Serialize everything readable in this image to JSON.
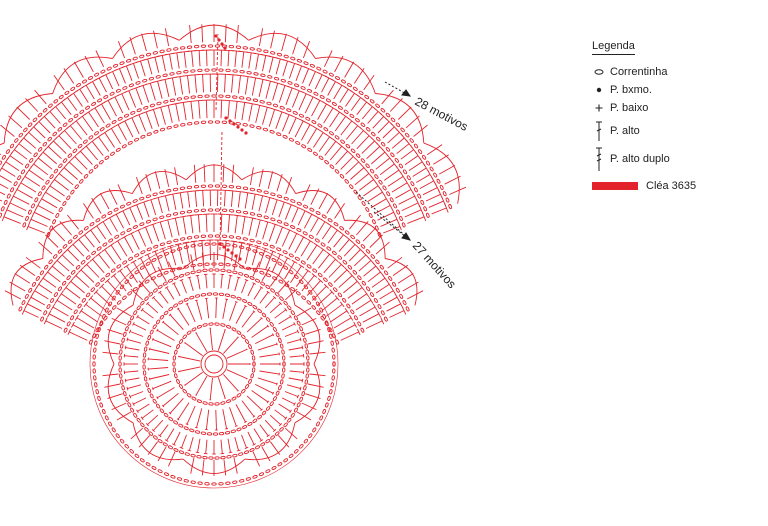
{
  "legend": {
    "title": "Legenda",
    "items": [
      {
        "symbol": "chain-oval-icon",
        "label": "Correntinha"
      },
      {
        "symbol": "dot-icon",
        "label": "P. bxmo."
      },
      {
        "symbol": "plus-icon",
        "label": "P. baixo"
      },
      {
        "symbol": "treble-stitch-icon",
        "label": "P. alto"
      },
      {
        "symbol": "double-treble-stitch-icon",
        "label": "P. alto duplo"
      }
    ],
    "color_swatch": {
      "color": "#e3232c",
      "label": "Cléa 3635"
    }
  },
  "annotations": {
    "upper": "28 motivos",
    "lower": "27 motivos"
  },
  "colors": {
    "stitch": "#e3232c",
    "text": "#222222"
  }
}
